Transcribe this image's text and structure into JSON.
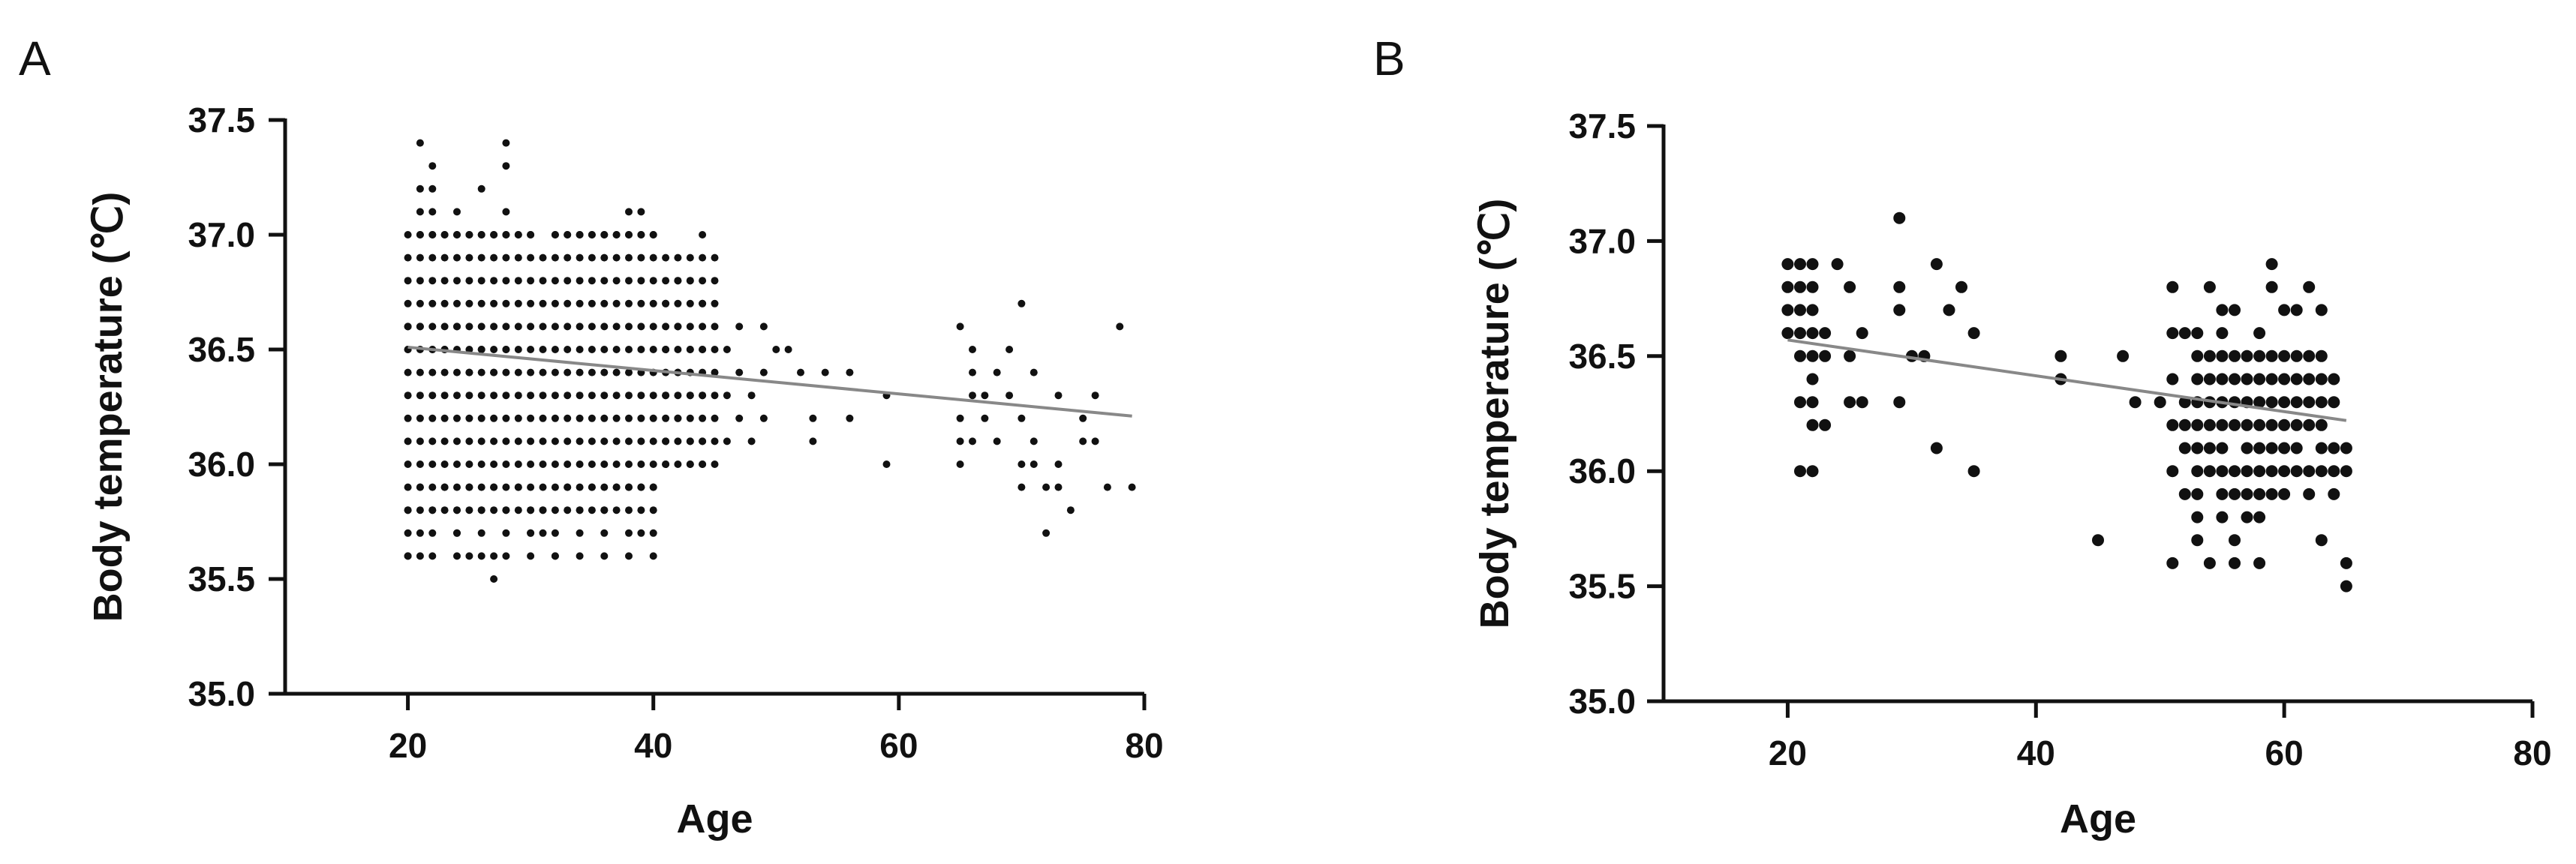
{
  "chart_data": [
    {
      "panel": "A",
      "type": "scatter",
      "xlabel": "Age",
      "ylabel": "Body temperature (℃)",
      "xlim": [
        10,
        80
      ],
      "ylim": [
        35.0,
        37.5
      ],
      "xticks": [
        "20",
        "40",
        "60",
        "80"
      ],
      "yticks": [
        "35.0",
        "35.5",
        "36.0",
        "36.5",
        "37.0",
        "37.5"
      ],
      "grid": false,
      "marker_color": "#111111",
      "marker_radius": 5,
      "trendline": {
        "color": "#888888",
        "x": [
          20,
          79
        ],
        "y": [
          36.51,
          36.21
        ]
      },
      "dense_block": {
        "x_from": 20,
        "x_to": 44,
        "y_from": 35.6,
        "y_to": 37.0
      },
      "points": [
        [
          21,
          37.4
        ],
        [
          22,
          37.3
        ],
        [
          21,
          37.2
        ],
        [
          22,
          37.2
        ],
        [
          26,
          37.2
        ],
        [
          28,
          37.4
        ],
        [
          28,
          37.3
        ],
        [
          21,
          37.1
        ],
        [
          22,
          37.1
        ],
        [
          24,
          37.1
        ],
        [
          28,
          37.1
        ],
        [
          38,
          37.1
        ],
        [
          39,
          37.1
        ],
        [
          44,
          37.0
        ],
        [
          20,
          36.6
        ],
        [
          20,
          36.5
        ],
        [
          21,
          36.6
        ],
        [
          22,
          36.5
        ],
        [
          23,
          36.5
        ],
        [
          24,
          36.6
        ],
        [
          25,
          36.4
        ],
        [
          26,
          36.5
        ],
        [
          27,
          36.4
        ],
        [
          28,
          36.5
        ],
        [
          45,
          36.9
        ],
        [
          45,
          36.8
        ],
        [
          45,
          36.7
        ],
        [
          45,
          36.6
        ],
        [
          45,
          36.5
        ],
        [
          45,
          36.4
        ],
        [
          45,
          36.3
        ],
        [
          45,
          36.2
        ],
        [
          45,
          36.1
        ],
        [
          45,
          36.0
        ],
        [
          46,
          36.5
        ],
        [
          46,
          36.3
        ],
        [
          46,
          36.1
        ],
        [
          47,
          36.6
        ],
        [
          47,
          36.4
        ],
        [
          47,
          36.2
        ],
        [
          48,
          36.3
        ],
        [
          48,
          36.1
        ],
        [
          49,
          36.6
        ],
        [
          49,
          36.4
        ],
        [
          49,
          36.2
        ],
        [
          50,
          36.5
        ],
        [
          51,
          36.5
        ],
        [
          52,
          36.4
        ],
        [
          53,
          36.2
        ],
        [
          53,
          36.1
        ],
        [
          54,
          36.4
        ],
        [
          56,
          36.4
        ],
        [
          56,
          36.2
        ],
        [
          59,
          36.3
        ],
        [
          59,
          36.0
        ],
        [
          65,
          36.6
        ],
        [
          65,
          36.2
        ],
        [
          65,
          36.1
        ],
        [
          65,
          36.0
        ],
        [
          66,
          36.5
        ],
        [
          66,
          36.4
        ],
        [
          66,
          36.3
        ],
        [
          66,
          36.1
        ],
        [
          67,
          36.3
        ],
        [
          67,
          36.2
        ],
        [
          68,
          36.4
        ],
        [
          68,
          36.1
        ],
        [
          69,
          36.5
        ],
        [
          69,
          36.3
        ],
        [
          70,
          36.7
        ],
        [
          70,
          36.2
        ],
        [
          70,
          36.0
        ],
        [
          70,
          35.9
        ],
        [
          71,
          36.4
        ],
        [
          71,
          36.1
        ],
        [
          71,
          36.0
        ],
        [
          72,
          35.9
        ],
        [
          72,
          35.7
        ],
        [
          73,
          36.0
        ],
        [
          73,
          35.9
        ],
        [
          73,
          36.3
        ],
        [
          74,
          35.8
        ],
        [
          75,
          36.2
        ],
        [
          75,
          36.1
        ],
        [
          76,
          36.3
        ],
        [
          76,
          36.1
        ],
        [
          77,
          35.9
        ],
        [
          78,
          36.6
        ],
        [
          79,
          35.9
        ],
        [
          20,
          35.6
        ],
        [
          21,
          35.6
        ],
        [
          21,
          35.7
        ],
        [
          24,
          35.7
        ],
        [
          25,
          35.6
        ],
        [
          27,
          35.5
        ],
        [
          27,
          35.6
        ],
        [
          30,
          35.7
        ],
        [
          31,
          35.7
        ],
        [
          32,
          35.6
        ],
        [
          39,
          35.7
        ],
        [
          20,
          35.8
        ],
        [
          21,
          35.9
        ],
        [
          22,
          35.8
        ],
        [
          23,
          35.9
        ],
        [
          24,
          35.8
        ],
        [
          25,
          35.9
        ],
        [
          26,
          35.8
        ],
        [
          27,
          35.9
        ],
        [
          28,
          35.8
        ],
        [
          29,
          35.9
        ],
        [
          30,
          35.8
        ],
        [
          31,
          35.8
        ],
        [
          33,
          35.9
        ],
        [
          34,
          35.8
        ],
        [
          35,
          35.9
        ],
        [
          36,
          35.8
        ],
        [
          37,
          35.9
        ],
        [
          38,
          35.9
        ],
        [
          39,
          35.9
        ],
        [
          40,
          35.9
        ],
        [
          21,
          37.0
        ],
        [
          22,
          37.0
        ],
        [
          23,
          37.0
        ],
        [
          24,
          37.0
        ],
        [
          25,
          37.0
        ],
        [
          26,
          37.0
        ],
        [
          27,
          37.0
        ],
        [
          28,
          37.0
        ],
        [
          29,
          37.0
        ],
        [
          30,
          37.0
        ],
        [
          32,
          37.0
        ],
        [
          33,
          37.0
        ],
        [
          34,
          37.0
        ],
        [
          35,
          37.0
        ],
        [
          36,
          37.0
        ],
        [
          37,
          37.0
        ],
        [
          38,
          37.0
        ],
        [
          39,
          37.0
        ],
        [
          40,
          37.0
        ],
        [
          41,
          36.9
        ],
        [
          42,
          36.9
        ],
        [
          43,
          36.9
        ],
        [
          44,
          36.9
        ],
        [
          41,
          36.7
        ],
        [
          42,
          36.8
        ],
        [
          43,
          36.8
        ],
        [
          44,
          36.7
        ],
        [
          41,
          36.5
        ],
        [
          42,
          36.6
        ],
        [
          43,
          36.5
        ],
        [
          44,
          36.5
        ],
        [
          41,
          36.3
        ],
        [
          42,
          36.4
        ],
        [
          43,
          36.3
        ],
        [
          44,
          36.3
        ],
        [
          41,
          36.1
        ],
        [
          42,
          36.2
        ],
        [
          43,
          36.1
        ],
        [
          44,
          36.1
        ],
        [
          41,
          36.0
        ],
        [
          43,
          36.0
        ],
        [
          44,
          36.0
        ]
      ]
    },
    {
      "panel": "B",
      "type": "scatter",
      "xlabel": "Age",
      "ylabel": "Body temperature (℃)",
      "xlim": [
        10,
        80
      ],
      "ylim": [
        35.0,
        37.5
      ],
      "xticks": [
        "20",
        "40",
        "60",
        "80"
      ],
      "yticks": [
        "35.0",
        "35.5",
        "36.0",
        "36.5",
        "37.0",
        "37.5"
      ],
      "grid": false,
      "marker_color": "#111111",
      "marker_radius": 8,
      "trendline": {
        "color": "#888888",
        "x": [
          20,
          65
        ],
        "y": [
          36.57,
          36.22
        ]
      },
      "points": [
        [
          20,
          36.9
        ],
        [
          20,
          36.8
        ],
        [
          20,
          36.7
        ],
        [
          20,
          36.6
        ],
        [
          21,
          36.9
        ],
        [
          21,
          36.8
        ],
        [
          21,
          36.7
        ],
        [
          21,
          36.6
        ],
        [
          21,
          36.5
        ],
        [
          21,
          36.3
        ],
        [
          21,
          36.0
        ],
        [
          22,
          36.9
        ],
        [
          22,
          36.8
        ],
        [
          22,
          36.7
        ],
        [
          22,
          36.6
        ],
        [
          22,
          36.5
        ],
        [
          22,
          36.4
        ],
        [
          22,
          36.3
        ],
        [
          22,
          36.2
        ],
        [
          22,
          36.0
        ],
        [
          23,
          36.6
        ],
        [
          23,
          36.5
        ],
        [
          23,
          36.2
        ],
        [
          24,
          36.9
        ],
        [
          25,
          36.8
        ],
        [
          25,
          36.5
        ],
        [
          25,
          36.3
        ],
        [
          26,
          36.6
        ],
        [
          26,
          36.3
        ],
        [
          29,
          37.1
        ],
        [
          29,
          36.8
        ],
        [
          29,
          36.7
        ],
        [
          29,
          36.3
        ],
        [
          30,
          36.5
        ],
        [
          31,
          36.5
        ],
        [
          32,
          36.9
        ],
        [
          32,
          36.1
        ],
        [
          33,
          36.7
        ],
        [
          34,
          36.8
        ],
        [
          35,
          36.6
        ],
        [
          35,
          36.0
        ],
        [
          42,
          36.5
        ],
        [
          42,
          36.4
        ],
        [
          45,
          35.7
        ],
        [
          47,
          36.5
        ],
        [
          48,
          36.3
        ],
        [
          50,
          36.3
        ],
        [
          51,
          36.8
        ],
        [
          51,
          36.6
        ],
        [
          51,
          36.4
        ],
        [
          51,
          36.2
        ],
        [
          51,
          36.0
        ],
        [
          51,
          35.6
        ],
        [
          52,
          36.6
        ],
        [
          52,
          36.3
        ],
        [
          52,
          36.2
        ],
        [
          52,
          36.1
        ],
        [
          52,
          35.9
        ],
        [
          53,
          36.6
        ],
        [
          53,
          36.5
        ],
        [
          53,
          36.4
        ],
        [
          53,
          36.3
        ],
        [
          53,
          36.2
        ],
        [
          53,
          36.1
        ],
        [
          53,
          36.0
        ],
        [
          53,
          35.9
        ],
        [
          53,
          35.8
        ],
        [
          53,
          35.7
        ],
        [
          54,
          36.8
        ],
        [
          54,
          36.5
        ],
        [
          54,
          36.4
        ],
        [
          54,
          36.3
        ],
        [
          54,
          36.2
        ],
        [
          54,
          36.1
        ],
        [
          54,
          36.0
        ],
        [
          54,
          35.6
        ],
        [
          55,
          36.7
        ],
        [
          55,
          36.6
        ],
        [
          55,
          36.5
        ],
        [
          55,
          36.4
        ],
        [
          55,
          36.3
        ],
        [
          55,
          36.2
        ],
        [
          55,
          36.1
        ],
        [
          55,
          36.0
        ],
        [
          55,
          35.9
        ],
        [
          55,
          35.8
        ],
        [
          56,
          36.7
        ],
        [
          56,
          36.5
        ],
        [
          56,
          36.4
        ],
        [
          56,
          36.3
        ],
        [
          56,
          36.2
        ],
        [
          56,
          36.0
        ],
        [
          56,
          35.9
        ],
        [
          56,
          35.7
        ],
        [
          56,
          35.6
        ],
        [
          57,
          36.5
        ],
        [
          57,
          36.4
        ],
        [
          57,
          36.3
        ],
        [
          57,
          36.2
        ],
        [
          57,
          36.1
        ],
        [
          57,
          36.0
        ],
        [
          57,
          35.9
        ],
        [
          57,
          35.8
        ],
        [
          58,
          36.6
        ],
        [
          58,
          36.5
        ],
        [
          58,
          36.4
        ],
        [
          58,
          36.3
        ],
        [
          58,
          36.2
        ],
        [
          58,
          36.1
        ],
        [
          58,
          36.0
        ],
        [
          58,
          35.9
        ],
        [
          58,
          35.8
        ],
        [
          58,
          35.6
        ],
        [
          59,
          36.9
        ],
        [
          59,
          36.8
        ],
        [
          59,
          36.5
        ],
        [
          59,
          36.4
        ],
        [
          59,
          36.3
        ],
        [
          59,
          36.2
        ],
        [
          59,
          36.1
        ],
        [
          59,
          36.0
        ],
        [
          59,
          35.9
        ],
        [
          60,
          36.7
        ],
        [
          60,
          36.5
        ],
        [
          60,
          36.4
        ],
        [
          60,
          36.3
        ],
        [
          60,
          36.2
        ],
        [
          60,
          36.1
        ],
        [
          60,
          36.0
        ],
        [
          60,
          35.9
        ],
        [
          61,
          36.7
        ],
        [
          61,
          36.5
        ],
        [
          61,
          36.4
        ],
        [
          61,
          36.3
        ],
        [
          61,
          36.2
        ],
        [
          61,
          36.1
        ],
        [
          61,
          36.0
        ],
        [
          62,
          36.8
        ],
        [
          62,
          36.5
        ],
        [
          62,
          36.4
        ],
        [
          62,
          36.3
        ],
        [
          62,
          36.2
        ],
        [
          62,
          36.0
        ],
        [
          62,
          35.9
        ],
        [
          63,
          36.7
        ],
        [
          63,
          36.5
        ],
        [
          63,
          36.4
        ],
        [
          63,
          36.3
        ],
        [
          63,
          36.2
        ],
        [
          63,
          36.1
        ],
        [
          63,
          36.0
        ],
        [
          63,
          35.7
        ],
        [
          64,
          36.4
        ],
        [
          64,
          36.3
        ],
        [
          64,
          36.1
        ],
        [
          64,
          36.0
        ],
        [
          64,
          35.9
        ],
        [
          65,
          36.1
        ],
        [
          65,
          36.0
        ],
        [
          65,
          35.6
        ],
        [
          65,
          35.5
        ]
      ]
    }
  ]
}
